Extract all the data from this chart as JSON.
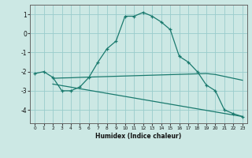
{
  "xlabel": "Humidex (Indice chaleur)",
  "bg_color": "#cce8e4",
  "grid_color": "#99cccc",
  "line_color": "#1a7a6e",
  "xlim": [
    -0.5,
    23.5
  ],
  "ylim": [
    -4.7,
    1.5
  ],
  "yticks": [
    1,
    0,
    -1,
    -2,
    -3,
    -4
  ],
  "xticks": [
    0,
    1,
    2,
    3,
    4,
    5,
    6,
    7,
    8,
    9,
    10,
    11,
    12,
    13,
    14,
    15,
    16,
    17,
    18,
    19,
    20,
    21,
    22,
    23
  ],
  "curve1_x": [
    0,
    1,
    2,
    3,
    4,
    5,
    6,
    7,
    8,
    9,
    10,
    11,
    12,
    13,
    14,
    15,
    16,
    17,
    18,
    19,
    20,
    21,
    22,
    23
  ],
  "curve1_y": [
    -2.1,
    -2.0,
    -2.3,
    -3.0,
    -3.0,
    -2.8,
    -2.3,
    -1.5,
    -0.8,
    -0.4,
    0.9,
    0.9,
    1.1,
    0.9,
    0.6,
    0.2,
    -1.2,
    -1.5,
    -2.0,
    -2.7,
    -3.0,
    -4.0,
    -4.2,
    -4.35
  ],
  "curve2_x": [
    2,
    3,
    4,
    5,
    19,
    20,
    21,
    22,
    23
  ],
  "curve2_y": [
    -2.35,
    -2.33,
    -2.32,
    -2.3,
    -2.1,
    -2.15,
    -2.25,
    -2.35,
    -2.45
  ],
  "curve3_x": [
    2,
    23
  ],
  "curve3_y": [
    -2.65,
    -4.35
  ]
}
